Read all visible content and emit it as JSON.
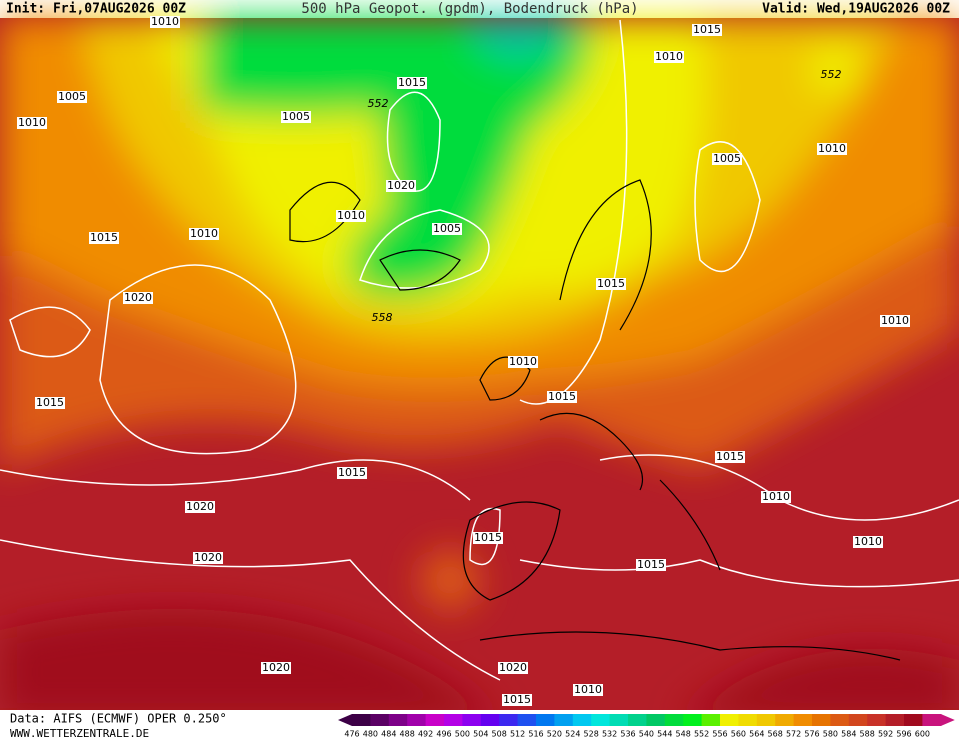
{
  "header": {
    "init": "Init: Fri,07AUG2026 00Z",
    "title": "500 hPa Geopot. (gpdm), Bodendruck (hPa)",
    "valid": "Valid: Wed,19AUG2026 00Z"
  },
  "isobar_labels": [
    "1010",
    "1005",
    "1010",
    "1005",
    "552",
    "1015",
    "1020",
    "1010",
    "1005",
    "1010",
    "1015",
    "1020",
    "558",
    "1015",
    "1015",
    "1020",
    "1020",
    "1020",
    "1015",
    "1020",
    "1015",
    "1010",
    "1015",
    "1010",
    "1015",
    "1015",
    "1015",
    "1010",
    "552",
    "1005",
    "1010",
    "1010",
    "1015",
    "1010",
    "1010"
  ],
  "colorbar": {
    "labels": [
      476,
      480,
      484,
      488,
      492,
      496,
      500,
      504,
      508,
      512,
      516,
      520,
      524,
      528,
      532,
      536,
      540,
      544,
      548,
      552,
      556,
      560,
      564,
      568,
      572,
      576,
      580,
      584,
      588,
      592,
      596,
      600
    ],
    "colors": [
      "#3c0046",
      "#5a0064",
      "#7d0088",
      "#a000aa",
      "#c800c8",
      "#b400e6",
      "#8c00f0",
      "#6400f0",
      "#3c28f0",
      "#1e50f0",
      "#0078f0",
      "#00a0f0",
      "#00c8f0",
      "#00e6dc",
      "#00dcb4",
      "#00d28c",
      "#00c864",
      "#00dc3c",
      "#00f01e",
      "#5af000",
      "#f0f000",
      "#f0dc00",
      "#f0c800",
      "#f0aa00",
      "#f08c00",
      "#e67300",
      "#dc5a14",
      "#d2461e",
      "#c83228",
      "#b41e28",
      "#a00a1e",
      "#c8147d"
    ]
  },
  "footer": {
    "data": "Data: AIFS (ECMWF) OPER 0.250°",
    "url": "WWW.WETTERZENTRALE.DE"
  }
}
